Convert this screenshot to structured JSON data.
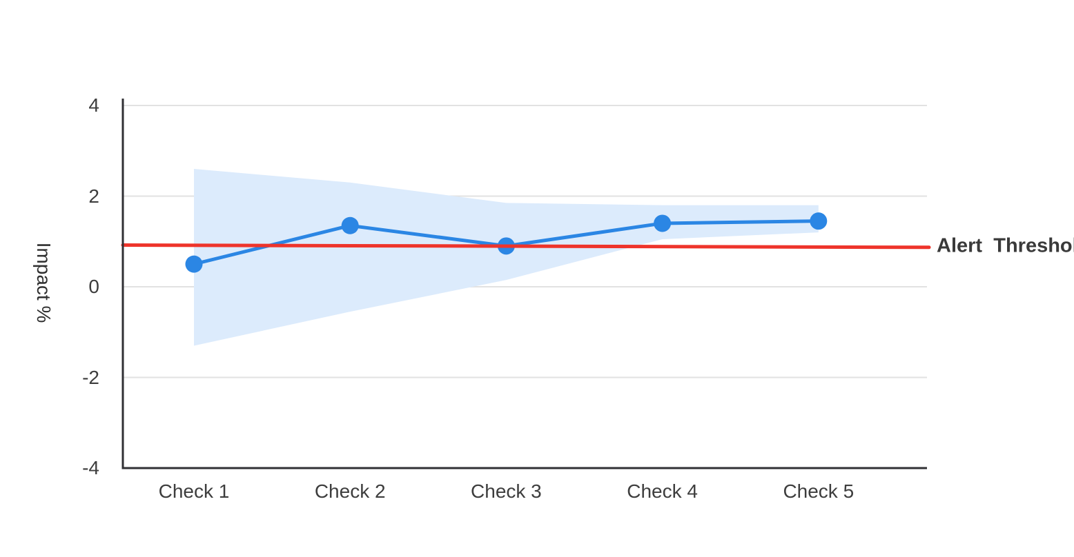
{
  "chart_data": {
    "type": "line",
    "title": "",
    "categories": [
      "Check 1",
      "Check 2",
      "Check 3",
      "Check 4",
      "Check 5"
    ],
    "series": [
      {
        "name": "Impact",
        "type": "line-with-markers",
        "values": [
          0.5,
          1.35,
          0.9,
          1.4,
          1.45
        ],
        "color": "#2b86e4"
      },
      {
        "name": "Confidence band",
        "type": "area-band",
        "upper": [
          2.6,
          2.3,
          1.85,
          1.8,
          1.8
        ],
        "lower": [
          -1.3,
          -0.55,
          0.15,
          1.05,
          1.2
        ],
        "color": "#dcebfc"
      },
      {
        "name": "Alert Threshold",
        "type": "reference-line",
        "start_value": 0.92,
        "end_value": 0.87,
        "color": "#ee342b"
      }
    ],
    "xlabel": "",
    "ylabel": "Impact %",
    "ylim": [
      -4,
      4
    ],
    "yticks": [
      4,
      2,
      0,
      -2,
      -4
    ],
    "grid_values": [
      4,
      2,
      0,
      -2
    ],
    "grid": true,
    "legend": "none",
    "threshold_label": "Alert Threshold"
  },
  "colors": {
    "line_blue": "#2b86e4",
    "band_blue": "#dcebfc",
    "threshold_red": "#ee342b",
    "gridline": "#e2e2e2",
    "axis_spine": "#303034",
    "tick_text": "#3d3d3d"
  }
}
